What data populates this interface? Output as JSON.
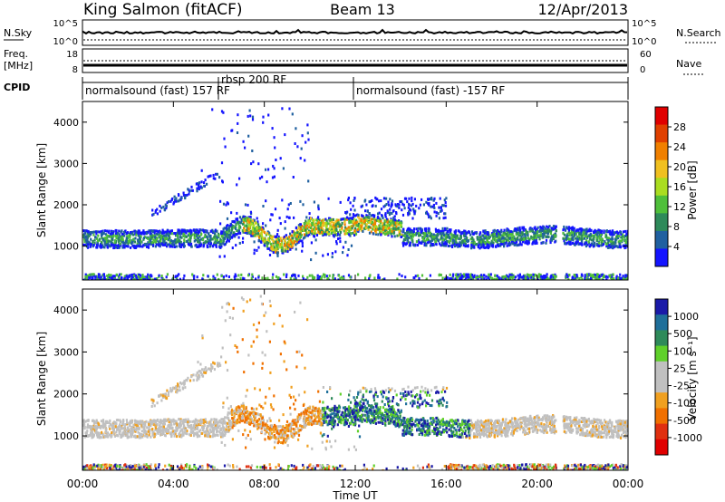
{
  "header": {
    "station": "King Salmon (fitACF)",
    "beam": "Beam 13",
    "date": "12/Apr/2013"
  },
  "strips": {
    "nsky_label": "N.Sky",
    "nsearch_label": "N.Search",
    "noise_ticks_left": [
      "10^5",
      "10^0"
    ],
    "noise_ticks_right": [
      "10^5",
      "10^0"
    ],
    "freq_label_1": "Freq.",
    "freq_label_2": "[MHz]",
    "freq_ticks": [
      "18",
      "8"
    ],
    "nave_label": "Nave",
    "nave_ticks": [
      "60",
      "0"
    ],
    "cpid_label": "CPID",
    "cpid_segments": [
      "normalsound (fast) 157 RF",
      "rbsp 200 RF",
      "normalsound (fast) -157 RF"
    ]
  },
  "colors": {
    "power_scale": [
      "#1414ff",
      "#2060a0",
      "#2e8a5a",
      "#4fbf3a",
      "#aadd20",
      "#f0c020",
      "#f08000",
      "#e04000",
      "#e00000"
    ],
    "velocity_scale": [
      "#1a1aa8",
      "#1f6f9a",
      "#2e8a5a",
      "#5fd02a",
      "#c0c0c0",
      "#c0c0c0",
      "#f0a020",
      "#f07000",
      "#e03010",
      "#e00000"
    ]
  },
  "chart_data": [
    {
      "type": "heatmap",
      "name": "power",
      "ylabel": "Slant Range [km]",
      "xlabel": "",
      "xlim": [
        0,
        24
      ],
      "ylim": [
        180,
        4500
      ],
      "yticks": [
        "1000",
        "2000",
        "3000",
        "4000"
      ],
      "colorbar_label": "Power [dB]",
      "colorbar_ticks": [
        "4",
        "8",
        "12",
        "16",
        "20",
        "24",
        "28"
      ],
      "data_gaps_hours": [
        [
          20.8,
          21.1
        ]
      ]
    },
    {
      "type": "heatmap",
      "name": "velocity",
      "ylabel": "Slant Range [km]",
      "xlabel": "Time UT",
      "xlim": [
        0,
        24
      ],
      "ylim": [
        180,
        4500
      ],
      "xticks": [
        "00:00",
        "04:00",
        "08:00",
        "12:00",
        "16:00",
        "20:00",
        "00:00"
      ],
      "yticks": [
        "1000",
        "2000",
        "3000",
        "4000"
      ],
      "colorbar_label": "Velocity [m s⁻¹]",
      "colorbar_ticks": [
        "1000",
        "500",
        "100",
        "25",
        "-25",
        "-100",
        "-500",
        "-1000"
      ],
      "data_gaps_hours": [
        [
          20.8,
          21.1
        ]
      ]
    }
  ]
}
